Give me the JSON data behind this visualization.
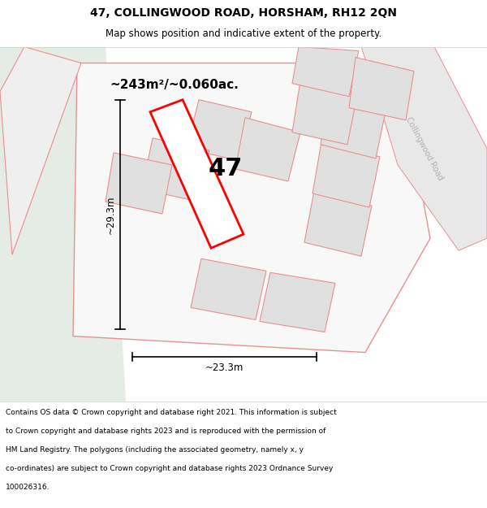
{
  "title": "47, COLLINGWOOD ROAD, HORSHAM, RH12 2QN",
  "subtitle": "Map shows position and indicative extent of the property.",
  "footer_line1": "Contains OS data © Crown copyright and database right 2021. This information is subject",
  "footer_line2": "to Crown copyright and database rights 2023 and is reproduced with the permission of",
  "footer_line3": "HM Land Registry. The polygons (including the associated geometry, namely x, y",
  "footer_line4": "co-ordinates) are subject to Crown copyright and database rights 2023 Ordnance Survey",
  "footer_line5": "100026316.",
  "area_label": "~243m²/~0.060ac.",
  "dim_width": "~23.3m",
  "dim_height": "~29.3m",
  "number_label": "47",
  "bg_map_color": "#f2f5f2",
  "bg_left_color": "#e5ebe5",
  "plot_fill_color": "#ffffff",
  "plot_edge_color": "#ff0000",
  "neighbor_fill_color": "#e0e0e0",
  "neighbor_edge_color": "#e89090",
  "outer_fill_color": "#f8f8f8",
  "road_strip_color": "#e8e8e8",
  "road_text_color": "#b0b0b0",
  "title_fontsize": 10,
  "subtitle_fontsize": 8.5,
  "footer_fontsize": 6.5
}
